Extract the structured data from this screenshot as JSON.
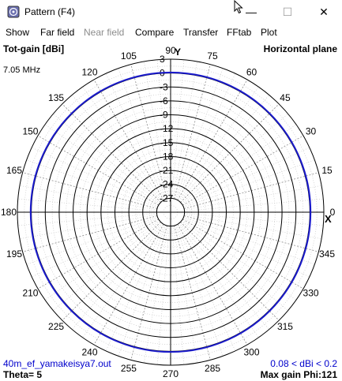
{
  "window": {
    "title": "Pattern   (F4)",
    "controls": {
      "minimize": "—",
      "maximize": "☐",
      "close": "✕"
    }
  },
  "menu": {
    "items": [
      {
        "label": "Show",
        "enabled": true
      },
      {
        "label": "Far field",
        "enabled": true
      },
      {
        "label": "Near field",
        "enabled": false
      },
      {
        "label": "Compare",
        "enabled": true
      },
      {
        "label": "Transfer",
        "enabled": true
      },
      {
        "label": "FFtab",
        "enabled": true
      },
      {
        "label": "Plot",
        "enabled": true
      }
    ]
  },
  "plot": {
    "top_left": "Tot-gain [dBi]",
    "top_right": "Horizontal plane",
    "frequency": "7.05 MHz",
    "filename": "40m_ef_yamakeisya7.out",
    "gain_range": "0.08 < dBi < 0.2",
    "theta": "Theta= 5",
    "max_gain": "Max gain Phi:121",
    "y_axis_label": "Y",
    "x_axis_label": "X",
    "colors": {
      "pattern": "#1a1acc",
      "grid": "#000000",
      "filename_text": "#0000cc"
    }
  },
  "chart_data": {
    "type": "polar",
    "title": "Horizontal plane",
    "quantity": "Tot-gain [dBi]",
    "angle_labels": [
      "0",
      "15",
      "30",
      "45",
      "60",
      "75",
      "90",
      "105",
      "120",
      "135",
      "150",
      "165",
      "180",
      "195",
      "210",
      "225",
      "240",
      "255",
      "270",
      "285",
      "300",
      "315",
      "330",
      "345"
    ],
    "radial_labels": [
      "3",
      "0",
      "-3",
      "-6",
      "-9",
      "-12",
      "-15",
      "-18",
      "-21",
      "-24",
      "-27"
    ],
    "radial_range_db": [
      -30,
      3
    ],
    "series": [
      {
        "name": "40m_ef_yamakeisya7.out",
        "gain_dbi_min": 0.08,
        "gain_dbi_max": 0.2,
        "shape": "circle"
      }
    ]
  }
}
